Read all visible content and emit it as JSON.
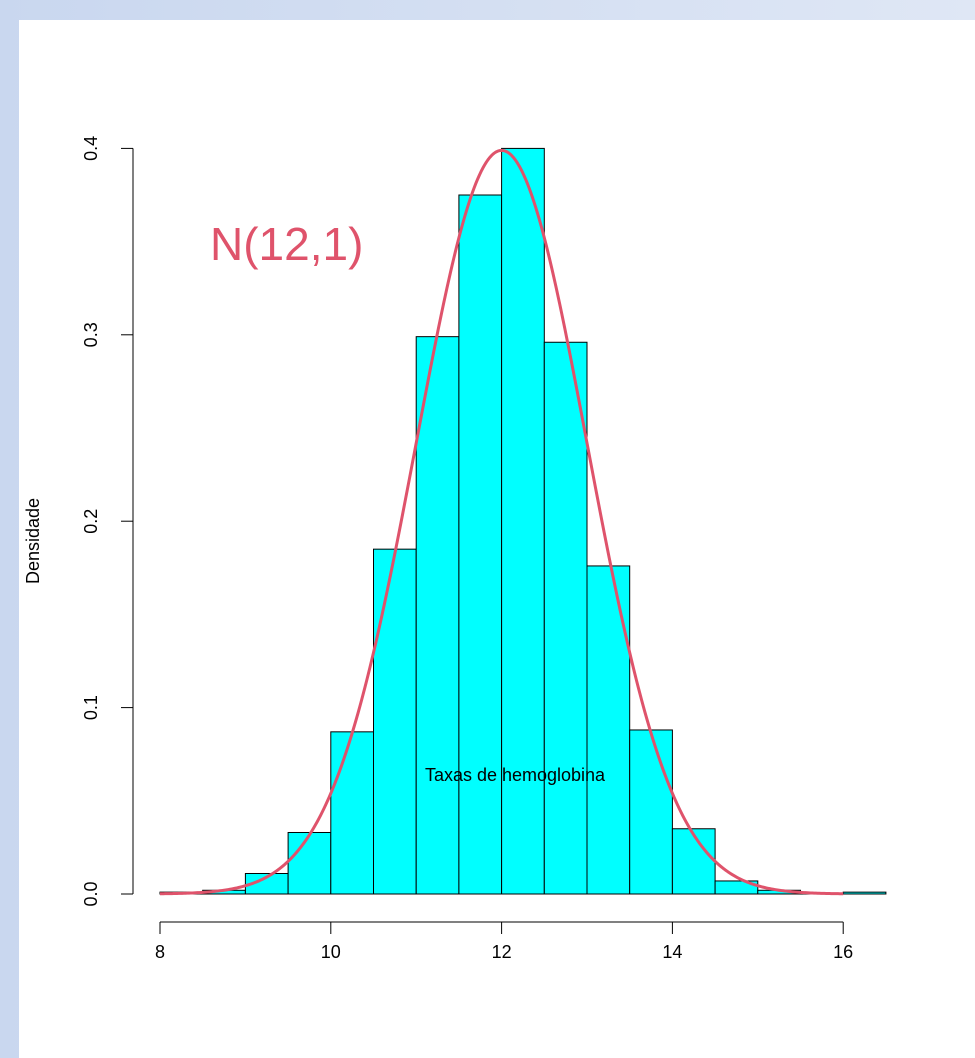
{
  "chart_data": {
    "type": "bar",
    "xlabel": "Taxas de hemoglobina",
    "ylabel": "Densidade",
    "annotation": "N(12,1)",
    "xlim": [
      8,
      16.5
    ],
    "ylim": [
      0,
      0.4
    ],
    "x_ticks": [
      "8",
      "10",
      "12",
      "14",
      "16"
    ],
    "y_ticks": [
      "0.0",
      "0.1",
      "0.2",
      "0.3",
      "0.4"
    ],
    "bins": [
      {
        "x0": 8.0,
        "x1": 8.5,
        "density": 0.001
      },
      {
        "x0": 8.5,
        "x1": 9.0,
        "density": 0.002
      },
      {
        "x0": 9.0,
        "x1": 9.5,
        "density": 0.011
      },
      {
        "x0": 9.5,
        "x1": 10.0,
        "density": 0.033
      },
      {
        "x0": 10.0,
        "x1": 10.5,
        "density": 0.087
      },
      {
        "x0": 10.5,
        "x1": 11.0,
        "density": 0.185
      },
      {
        "x0": 11.0,
        "x1": 11.5,
        "density": 0.299
      },
      {
        "x0": 11.5,
        "x1": 12.0,
        "density": 0.375
      },
      {
        "x0": 12.0,
        "x1": 12.5,
        "density": 0.4
      },
      {
        "x0": 12.5,
        "x1": 13.0,
        "density": 0.296
      },
      {
        "x0": 13.0,
        "x1": 13.5,
        "density": 0.176
      },
      {
        "x0": 13.5,
        "x1": 14.0,
        "density": 0.088
      },
      {
        "x0": 14.0,
        "x1": 14.5,
        "density": 0.035
      },
      {
        "x0": 14.5,
        "x1": 15.0,
        "density": 0.007
      },
      {
        "x0": 15.0,
        "x1": 15.5,
        "density": 0.002
      },
      {
        "x0": 15.5,
        "x1": 16.0,
        "density": 0.0
      },
      {
        "x0": 16.0,
        "x1": 16.5,
        "density": 0.001
      }
    ],
    "curve": {
      "distribution": "normal",
      "mean": 12,
      "sd": 1,
      "x_range": [
        8,
        16
      ]
    },
    "colors": {
      "bars": "#00ffff",
      "bar_border": "#000000",
      "curve": "#df536b"
    }
  }
}
